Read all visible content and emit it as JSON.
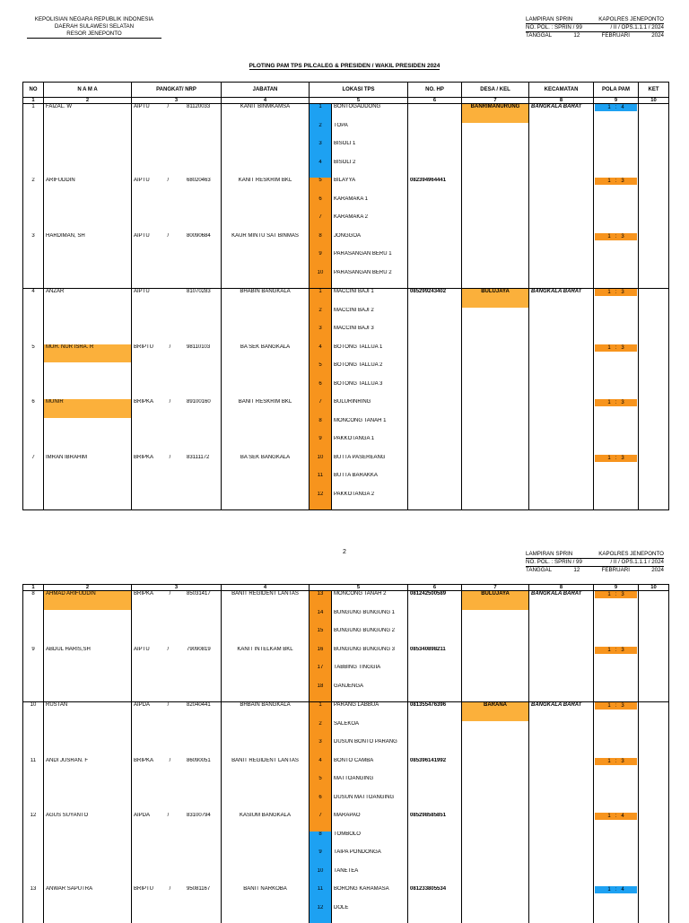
{
  "header": {
    "org_line1": "KEPOLISIAN NEGARA REPUBLIK INDONESIA",
    "org_line2": "DAERAH SULAWESI SELATAN",
    "org_line3": "RESOR JENEPONTO",
    "lamp_l": "LAMPIRAN   SPRIN",
    "lamp_r": "KAPOLRES   JENEPONTO",
    "nopol_l": "NO. POL. : SPRIN /   99",
    "nopol_r": "/ II / OPS.1.1.1 / 2024",
    "tgl_l": "TANGGAL",
    "tgl_m": "12",
    "tgl_month": "FEBRUARI",
    "tgl_year": "2024",
    "title": "PLOTING PAM TPS PILCALEG & PRESIDEN / WAKIL PRESIDEN 2024",
    "page2": "2"
  },
  "columns": {
    "no": "NO",
    "nama": "N A M A",
    "pangkat": "PANGKAT/ NRP",
    "jabatan": "JABATAN",
    "lokasi": "LOKASI TPS",
    "hp": "NO. HP",
    "desa": "DESA / KEL",
    "kec": "KECAMATAN",
    "pola": "POLA PAM",
    "ket": "KET",
    "n1": "1",
    "n2": "2",
    "n3": "3",
    "n4": "4",
    "n5": "5",
    "n6": "6",
    "n7": "7",
    "n8": "8",
    "n9": "9",
    "n10": "10"
  },
  "page1_rows": [
    {
      "no": "1",
      "nama": "FAIZAL. W",
      "pk": "AIPTU",
      "slash": "/",
      "nrp": "81120033",
      "jab": "KANIT BINMKAMSA",
      "tps": "1",
      "tpsname": "BONTOGADDONG",
      "hp": "",
      "desa": "BANRIMANURUNG",
      "kec": "BANGKALA BARAT",
      "pola": "1   :   4"
    },
    {
      "tps": "2",
      "tpsname": "TOPA"
    },
    {
      "tps": "3",
      "tpsname": "BISOLI 1"
    },
    {
      "tps": "4",
      "tpsname": "BISOLI 2"
    },
    {
      "no": "2",
      "nama": "ARIFUDDIN",
      "pk": "AIPTU",
      "slash": "/",
      "nrp": "68020463",
      "jab": "KANIT RESKRIM BKL",
      "tps": "5",
      "tpsname": "BILAYYA",
      "hp": "082394964441",
      "pola": "1   :   3"
    },
    {
      "tps": "6",
      "tpsname": "KARAMAKA 1"
    },
    {
      "tps": "7",
      "tpsname": "KARAMAKA 2"
    },
    {
      "no": "3",
      "nama": "HARDIMAN, SH",
      "pk": "AIPTU",
      "slash": "/",
      "nrp": "80090684",
      "jab": "KAUR MINTU SAT BINMAS",
      "tps": "8",
      "tpsname": "JONGGOA",
      "pola": "1   :   3"
    },
    {
      "tps": "9",
      "tpsname": "PARASANGAN BERU 1"
    },
    {
      "tps": "10",
      "tpsname": "PARASANGAN BERU 2"
    },
    {
      "no": "4",
      "nama": "ANZAR",
      "pk": "AIPTU",
      "slash": "",
      "nrp": "81070283",
      "jab": "BHABIN BANGKALA",
      "tps": "1",
      "tpsname": "MACCINI BAJI 1",
      "hp": "085299243402",
      "desa": "BULUJAYA",
      "kec": "BANGKALA BARAT",
      "pola": "1   :   3"
    },
    {
      "tps": "2",
      "tpsname": "MACCINI BAJI 2"
    },
    {
      "tps": "3",
      "tpsname": "MACCINI BAJI 3"
    },
    {
      "no": "5",
      "nama": "MUH. NUR ISRA. R",
      "pk": "BRIPTU",
      "slash": "/",
      "nrp": "98110103",
      "jab": "BA SEK BANGKALA",
      "tps": "4",
      "tpsname": "BOTONG TALLUA 1",
      "pola": "1   :   3"
    },
    {
      "tps": "5",
      "tpsname": "BOTONG TALLUA 2"
    },
    {
      "tps": "6",
      "tpsname": "BOTONG TALLUA 3"
    },
    {
      "no": "6",
      "nama": "MUNIR",
      "pk": "BRIPKA",
      "slash": "/",
      "nrp": "89100160",
      "jab": "BANIT RESKRIM BKL",
      "tps": "7",
      "tpsname": "BULURINRING",
      "pola": "1   :   3"
    },
    {
      "tps": "8",
      "tpsname": "MONCONG TANAH 1"
    },
    {
      "tps": "9",
      "tpsname": "PAKKOTANGA 1"
    },
    {
      "no": "7",
      "nama": "IMRAN IBRAHIM",
      "pk": "BRIPKA",
      "slash": "/",
      "nrp": "83111172",
      "jab": "BA SEK BANGKALA",
      "tps": "10",
      "tpsname": "BUTTA PASEREANG",
      "pola": "1   :   3"
    },
    {
      "tps": "11",
      "tpsname": "BUTTA BARAKKA"
    },
    {
      "tps": "12",
      "tpsname": "PAKKOTANGA 2"
    }
  ],
  "page2_rows": [
    {
      "no": "8",
      "nama": "AHMAD ARIFUDDIN",
      "pk": "BRIPKA",
      "slash": "/",
      "nrp": "85031417",
      "jab": "BANIT REGIDENT LANTAS",
      "tps": "13",
      "tpsname": "MONCONG TANAH 2",
      "hp": "081242500589",
      "desa": "BULUJAYA",
      "kec": "BANGKALA BARAT",
      "pola": "1   :   3"
    },
    {
      "tps": "14",
      "tpsname": "BUNGUNG BUNGUNG 1"
    },
    {
      "tps": "15",
      "tpsname": "BUNGUNG BUNGUNG 2"
    },
    {
      "no": "9",
      "nama": "ABDUL HARIS,SH",
      "pk": "AIPTU",
      "slash": "/",
      "nrp": "79090819",
      "jab": "KANIT INTELKAM BKL",
      "tps": "16",
      "tpsname": "BUNGUNG BUNGUNG 3",
      "hp": "085340898211",
      "pola": "1   :   3"
    },
    {
      "tps": "17",
      "tpsname": "TABBING TINGGIA"
    },
    {
      "tps": "18",
      "tpsname": "GANJENGA"
    },
    {
      "no": "10",
      "nama": "RUSTAN",
      "pk": "AIPDA",
      "slash": "/",
      "nrp": "82040441",
      "jab": "BHBAIN BANGKALA",
      "tps": "1",
      "tpsname": "PARANG LABBUA",
      "hp": "081355476396",
      "desa": "BARANA",
      "kec": "BANGKALA BARAT",
      "pola": "1   :   3"
    },
    {
      "tps": "2",
      "tpsname": "SALEKOA"
    },
    {
      "tps": "3",
      "tpsname": "DUSUN BONTO PARANG"
    },
    {
      "no": "11",
      "nama": "ANDI JUSRAN. F",
      "pk": "BRIPKA",
      "slash": "/",
      "nrp": "86090051",
      "jab": "BANIT REGIDENT LANTAS",
      "tps": "4",
      "tpsname": "BONTO CAMBA",
      "hp": "085396141992",
      "pola": "1   :   3"
    },
    {
      "tps": "5",
      "tpsname": "MATTOANGING"
    },
    {
      "tps": "6",
      "tpsname": "DUSUN MATTOANGING"
    },
    {
      "no": "12",
      "nama": "AGUS SUYANTO",
      "pk": "AIPDA",
      "slash": "/",
      "nrp": "83100794",
      "jab": "KASIUM BANGKALA",
      "tps": "7",
      "tpsname": "MARAPAO",
      "hp": "085298585851",
      "pola": "1   :   4"
    },
    {
      "tps": "8",
      "tpsname": "TOMBOLO"
    },
    {
      "tps": "9",
      "tpsname": "TAIPA PONDONGA"
    },
    {
      "tps": "10",
      "tpsname": "TANETEA"
    },
    {
      "no": "13",
      "nama": "ANWAR SAPUTRA",
      "pk": "BRIPTU",
      "slash": "/",
      "nrp": "95081167",
      "jab": "BANIT NARKOBA",
      "tps": "11",
      "tpsname": "BORONG KARAMASA",
      "hp": "081233805534",
      "pola": "1   :   4"
    },
    {
      "tps": "12",
      "tpsname": "DOLE"
    }
  ],
  "colors": {
    "orange": "#f7941d",
    "blue": "#1da1f2",
    "yellow": "#fbb03b"
  }
}
